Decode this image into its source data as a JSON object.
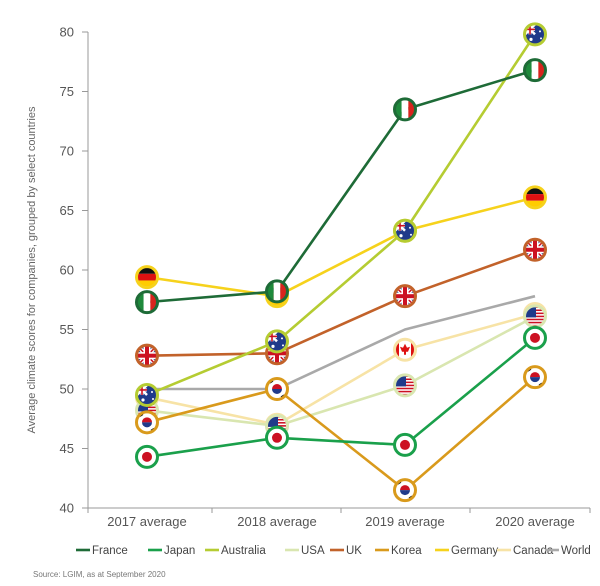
{
  "chart_data": {
    "type": "line",
    "title": "",
    "xlabel": "",
    "ylabel": "Average climate scores for companies, grouped by select countries",
    "ylim": [
      40,
      80
    ],
    "yticks": [
      40,
      45,
      50,
      55,
      60,
      65,
      70,
      75,
      80
    ],
    "grid": false,
    "categories": [
      "2017 average",
      "2018 average",
      "2019 average",
      "2020 average"
    ],
    "series": [
      {
        "name": "France",
        "color": "#1e6b37",
        "flag": "france-flag",
        "values": [
          57.3,
          58.2,
          73.5,
          76.8
        ]
      },
      {
        "name": "Japan",
        "color": "#1aa04b",
        "flag": "japan-flag",
        "values": [
          44.3,
          45.9,
          45.3,
          54.3
        ]
      },
      {
        "name": "Australia",
        "color": "#b5cc32",
        "flag": "australia-flag",
        "values": [
          49.5,
          54.0,
          63.3,
          79.8
        ]
      },
      {
        "name": "USA",
        "color": "#d9e6b0",
        "flag": "usa-flag",
        "values": [
          48.2,
          46.9,
          50.3,
          56.1
        ]
      },
      {
        "name": "UK",
        "color": "#c2622a",
        "flag": "uk-flag",
        "values": [
          52.8,
          53.0,
          57.8,
          61.7
        ]
      },
      {
        "name": "Korea",
        "color": "#d99a1c",
        "flag": "korea-flag",
        "values": [
          47.2,
          50.0,
          41.5,
          51.0
        ]
      },
      {
        "name": "Germany",
        "color": "#f6d21c",
        "flag": "germany-flag",
        "values": [
          59.4,
          57.8,
          63.3,
          66.1
        ]
      },
      {
        "name": "Canada",
        "color": "#f7e3a6",
        "flag": "canada-flag",
        "values": [
          49.3,
          47.0,
          53.3,
          56.3
        ]
      },
      {
        "name": "World",
        "color": "#a9a9a9",
        "flag": "",
        "values": [
          50.0,
          50.0,
          55.0,
          57.8
        ]
      }
    ]
  },
  "source": "Source: LGIM, as at September 2020"
}
